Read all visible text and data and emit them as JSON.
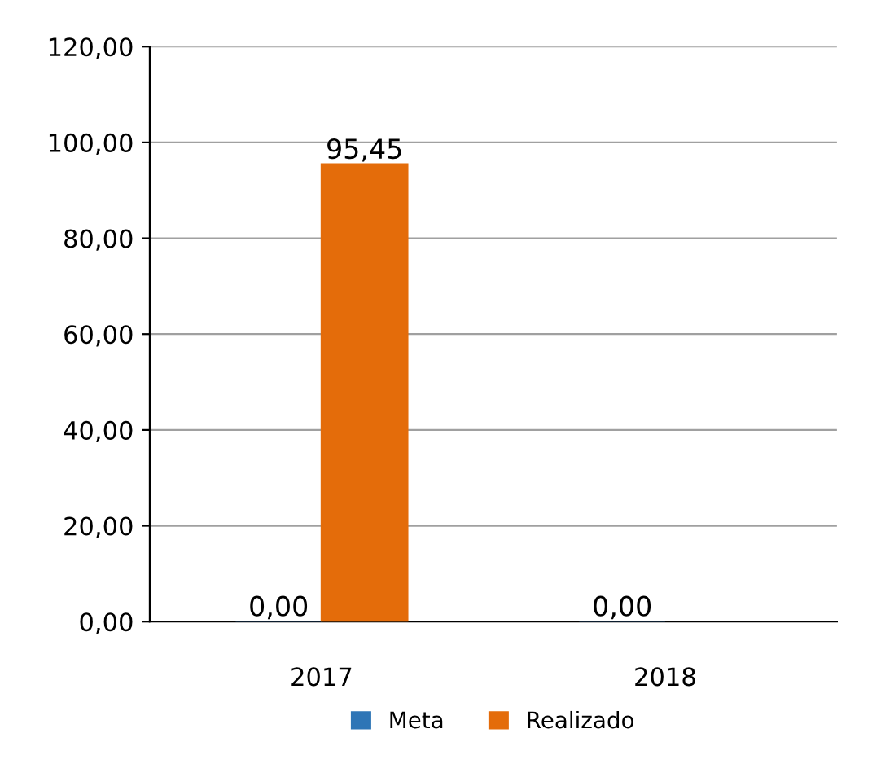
{
  "chart_data": {
    "type": "bar",
    "categories": [
      "2017",
      "2018"
    ],
    "series": [
      {
        "name": "Meta",
        "color": "#2e75b6",
        "values": [
          0,
          0
        ],
        "value_labels": [
          "0,00",
          "0,00"
        ]
      },
      {
        "name": "Realizado",
        "color": "#e46c0a",
        "values": [
          95.45,
          null
        ],
        "value_labels": [
          "95,45",
          null
        ]
      }
    ],
    "ylim": [
      0,
      120
    ],
    "yticks": [
      {
        "value": 0,
        "label": "0,00"
      },
      {
        "value": 20,
        "label": "20,00"
      },
      {
        "value": 40,
        "label": "40,00"
      },
      {
        "value": 60,
        "label": "60,00"
      },
      {
        "value": 80,
        "label": "80,00"
      },
      {
        "value": 100,
        "label": "100,00"
      },
      {
        "value": 120,
        "label": "120,00"
      }
    ],
    "grid": "y",
    "legend": "bottom"
  }
}
